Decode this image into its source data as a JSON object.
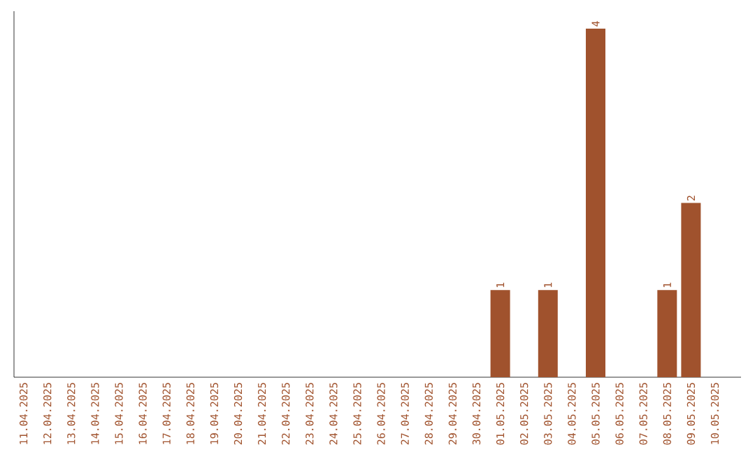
{
  "chart_data": {
    "type": "bar",
    "categories": [
      "11.04.2025",
      "12.04.2025",
      "13.04.2025",
      "14.04.2025",
      "15.04.2025",
      "16.04.2025",
      "17.04.2025",
      "18.04.2025",
      "19.04.2025",
      "20.04.2025",
      "21.04.2025",
      "22.04.2025",
      "23.04.2025",
      "24.04.2025",
      "25.04.2025",
      "26.04.2025",
      "27.04.2025",
      "28.04.2025",
      "29.04.2025",
      "30.04.2025",
      "01.05.2025",
      "02.05.2025",
      "03.05.2025",
      "04.05.2025",
      "05.05.2025",
      "06.05.2025",
      "07.05.2025",
      "08.05.2025",
      "09.05.2025",
      "10.05.2025"
    ],
    "values": [
      null,
      null,
      null,
      null,
      null,
      null,
      null,
      null,
      null,
      null,
      null,
      null,
      null,
      null,
      null,
      null,
      null,
      null,
      null,
      null,
      1,
      null,
      1,
      null,
      4,
      null,
      null,
      1,
      2,
      null
    ],
    "data_labels": true,
    "color": "#a0522d",
    "ylim": [
      0,
      4.2
    ],
    "tick_labels": "x",
    "grid": false
  }
}
